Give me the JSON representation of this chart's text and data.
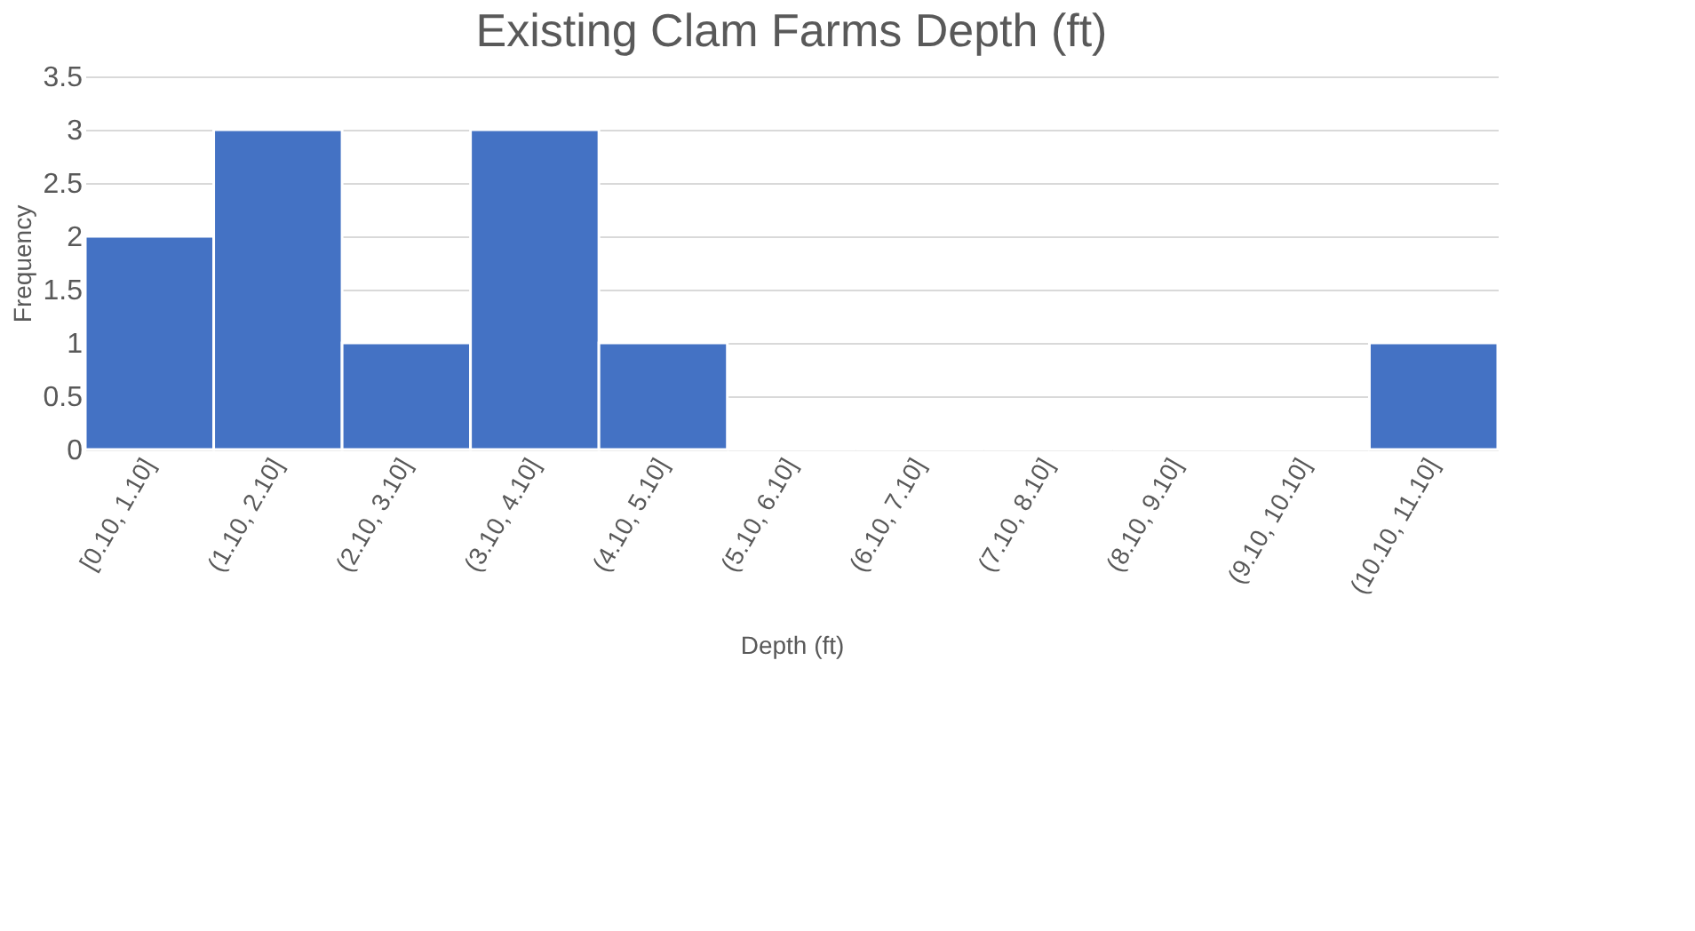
{
  "chart_data": {
    "type": "bar",
    "title": "Existing Clam Farms Depth (ft)",
    "xlabel": "Depth (ft)",
    "ylabel": "Frequency",
    "categories": [
      "[0.10, 1.10]",
      "(1.10, 2.10]",
      "(2.10, 3.10]",
      "(3.10, 4.10]",
      "(4.10, 5.10]",
      "(5.10, 6.10]",
      "(6.10, 7.10]",
      "(7.10, 8.10]",
      "(8.10, 9.10]",
      "(9.10, 10.10]",
      "(10.10, 11.10]"
    ],
    "values": [
      2,
      3,
      1,
      3,
      1,
      0,
      0,
      0,
      0,
      0,
      1
    ],
    "color": "#4472c4",
    "ylim": [
      0,
      3.5
    ],
    "yticks": [
      0,
      0.5,
      1,
      1.5,
      2,
      2.5,
      3,
      3.5
    ],
    "grid": "y"
  }
}
